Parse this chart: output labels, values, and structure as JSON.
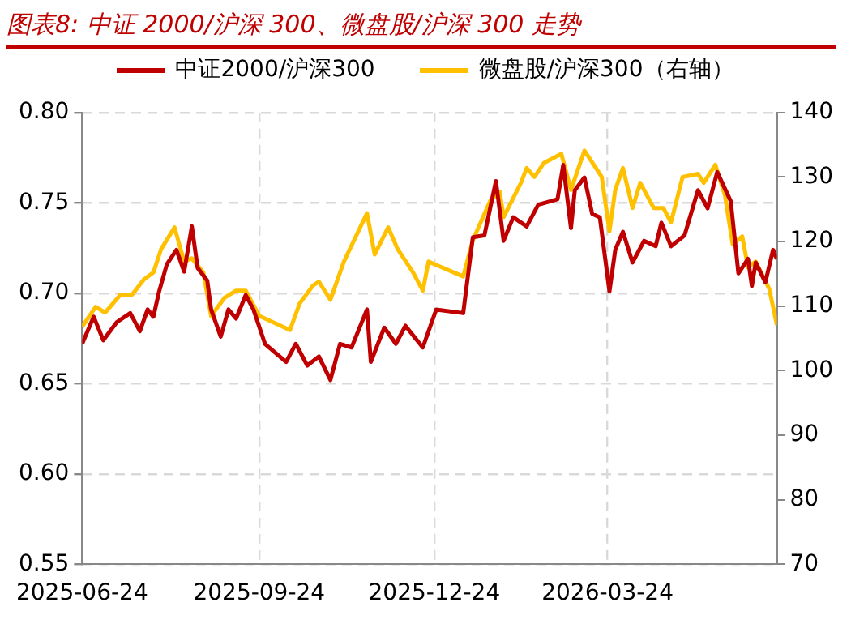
{
  "chart_data": {
    "type": "line",
    "title": "图表8:  中证 2000/沪深 300、微盘股/沪深 300 走势",
    "legend": "top",
    "grid": true,
    "line_style": "solid",
    "marker": "none",
    "xlim": [
      "2025-06-24",
      "2026-06-20"
    ],
    "xticks": [
      "2025-06-24",
      "2025-09-24",
      "2025-12-24",
      "2026-03-24"
    ],
    "ylim": [
      0.55,
      0.8
    ],
    "yticks": [
      0.55,
      {
        "value": 0.6,
        "label": "0.60"
      },
      0.65,
      {
        "value": 0.7,
        "label": "0.70"
      },
      0.75,
      {
        "value": 0.8,
        "label": "0.80"
      }
    ],
    "y2lim": [
      70,
      140
    ],
    "y2ticks": [
      70,
      80,
      90,
      100,
      110,
      120,
      130,
      140
    ],
    "series": [
      {
        "name": "中证2000/沪深300",
        "color": "#c00000",
        "x": [
          "2025-06-24",
          "2025-06-30",
          "2025-07-05",
          "2025-07-12",
          "2025-07-19",
          "2025-07-24",
          "2025-07-28",
          "2025-07-31",
          "2025-08-03",
          "2025-08-07",
          "2025-08-12",
          "2025-08-16",
          "2025-08-20",
          "2025-08-23",
          "2025-08-28",
          "2025-08-30",
          "2025-09-04",
          "2025-09-08",
          "2025-09-12",
          "2025-09-17",
          "2025-09-21",
          "2025-09-27",
          "2025-10-08",
          "2025-10-13",
          "2025-10-19",
          "2025-10-25",
          "2025-10-31",
          "2025-11-05",
          "2025-11-11",
          "2025-11-19",
          "2025-11-21",
          "2025-11-28",
          "2025-12-04",
          "2025-12-09",
          "2025-12-18",
          "2025-12-25",
          "2026-01-08",
          "2026-01-13",
          "2026-01-19",
          "2026-01-25",
          "2026-01-29",
          "2026-02-03",
          "2026-02-10",
          "2026-02-16",
          "2026-02-26",
          "2026-03-01",
          "2026-03-05",
          "2026-03-07",
          "2026-03-12",
          "2026-03-16",
          "2026-03-20",
          "2026-03-25",
          "2026-03-28",
          "2026-04-01",
          "2026-04-06",
          "2026-04-12",
          "2026-04-18",
          "2026-04-21",
          "2026-04-26",
          "2026-05-03",
          "2026-05-10",
          "2026-05-15",
          "2026-05-20",
          "2026-05-27",
          "2026-05-31",
          "2026-06-05",
          "2026-06-07",
          "2026-06-09",
          "2026-06-14",
          "2026-06-18",
          "2026-06-20"
        ],
        "values": [
          0.672,
          0.687,
          0.674,
          0.684,
          0.689,
          0.679,
          0.691,
          0.687,
          0.701,
          0.716,
          0.724,
          0.712,
          0.737,
          0.714,
          0.707,
          0.691,
          0.676,
          0.691,
          0.686,
          0.699,
          0.691,
          0.672,
          0.662,
          0.672,
          0.66,
          0.665,
          0.652,
          0.672,
          0.67,
          0.691,
          0.662,
          0.681,
          0.672,
          0.682,
          0.67,
          0.691,
          0.689,
          0.731,
          0.732,
          0.762,
          0.729,
          0.742,
          0.737,
          0.749,
          0.752,
          0.771,
          0.736,
          0.757,
          0.764,
          0.744,
          0.742,
          0.701,
          0.724,
          0.734,
          0.717,
          0.729,
          0.726,
          0.739,
          0.726,
          0.732,
          0.757,
          0.747,
          0.767,
          0.751,
          0.711,
          0.719,
          0.704,
          0.717,
          0.706,
          0.724,
          0.719
        ]
      },
      {
        "name": "微盘股/沪深300（右轴）",
        "color": "#ffc000",
        "axis": "y2",
        "x": [
          "2025-06-24",
          "2025-07-01",
          "2025-07-06",
          "2025-07-14",
          "2025-07-20",
          "2025-07-26",
          "2025-07-31",
          "2025-08-04",
          "2025-08-11",
          "2025-08-16",
          "2025-08-20",
          "2025-08-26",
          "2025-08-30",
          "2025-09-06",
          "2025-09-12",
          "2025-09-17",
          "2025-09-24",
          "2025-10-10",
          "2025-10-15",
          "2025-10-22",
          "2025-10-25",
          "2025-10-31",
          "2025-11-07",
          "2025-11-19",
          "2025-11-23",
          "2025-11-30",
          "2025-12-05",
          "2025-12-13",
          "2025-12-18",
          "2025-12-21",
          "2025-12-28",
          "2026-01-08",
          "2026-01-13",
          "2026-01-22",
          "2026-01-27",
          "2026-01-29",
          "2026-02-07",
          "2026-02-10",
          "2026-02-14",
          "2026-02-19",
          "2026-02-28",
          "2026-03-05",
          "2026-03-12",
          "2026-03-18",
          "2026-03-21",
          "2026-03-25",
          "2026-03-28",
          "2026-04-01",
          "2026-04-06",
          "2026-04-10",
          "2026-04-17",
          "2026-04-22",
          "2026-04-26",
          "2026-05-02",
          "2026-05-10",
          "2026-05-13",
          "2026-05-19",
          "2026-05-24",
          "2026-05-28",
          "2026-06-02",
          "2026-06-05",
          "2026-06-09",
          "2026-06-16",
          "2026-06-20"
        ],
        "values": [
          106.8,
          109.9,
          109.0,
          111.8,
          111.8,
          114.1,
          115.2,
          118.8,
          122.2,
          116.9,
          117.4,
          115.2,
          108.5,
          111.3,
          112.4,
          112.4,
          108.5,
          106.3,
          110.4,
          113.2,
          113.8,
          111.0,
          116.9,
          124.4,
          118.0,
          122.2,
          118.8,
          115.2,
          112.4,
          116.9,
          116.0,
          114.6,
          120.2,
          126.3,
          127.7,
          123.8,
          129.1,
          131.4,
          130.0,
          132.2,
          133.6,
          128.0,
          134.1,
          131.4,
          130.0,
          121.6,
          128.0,
          131.4,
          125.2,
          129.1,
          125.2,
          125.2,
          123.0,
          130.0,
          130.5,
          129.1,
          131.9,
          127.2,
          119.6,
          120.8,
          116.0,
          116.9,
          112.7,
          107.1
        ]
      }
    ]
  }
}
